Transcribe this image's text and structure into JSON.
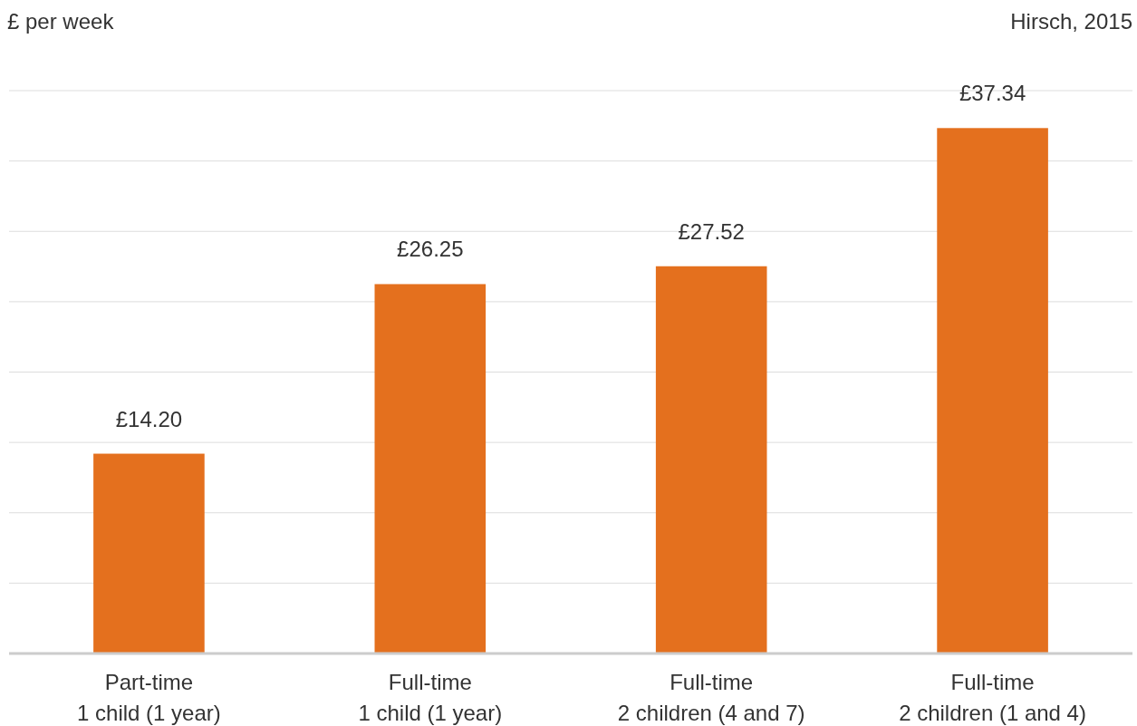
{
  "chart_data": {
    "type": "bar",
    "ylabel": "£ per week",
    "annotations": [
      "Hirsch, 2015"
    ],
    "categories": [
      "Part-time\n1 child (1 year)",
      "Full-time\n1 child (1 year)",
      "Full-time\n2 children (4 and 7)",
      "Full-time\n2 children (1 and 4)"
    ],
    "values": [
      14.2,
      26.25,
      27.52,
      37.34
    ],
    "value_labels": [
      "£14.20",
      "£26.25",
      "£27.52",
      "£37.34"
    ],
    "color": "#e4701e",
    "ylim": [
      0,
      40
    ],
    "yticks": [
      {
        "value": 0,
        "label": null
      },
      {
        "value": 5,
        "label": null
      },
      {
        "value": 10,
        "label": null
      },
      {
        "value": 15,
        "label": null
      },
      {
        "value": 20,
        "label": null
      },
      {
        "value": 25,
        "label": null
      },
      {
        "value": 30,
        "label": null
      },
      {
        "value": 35,
        "label": null
      },
      {
        "value": 40,
        "label": null
      }
    ],
    "grid": "y",
    "tick_labels": "x"
  }
}
